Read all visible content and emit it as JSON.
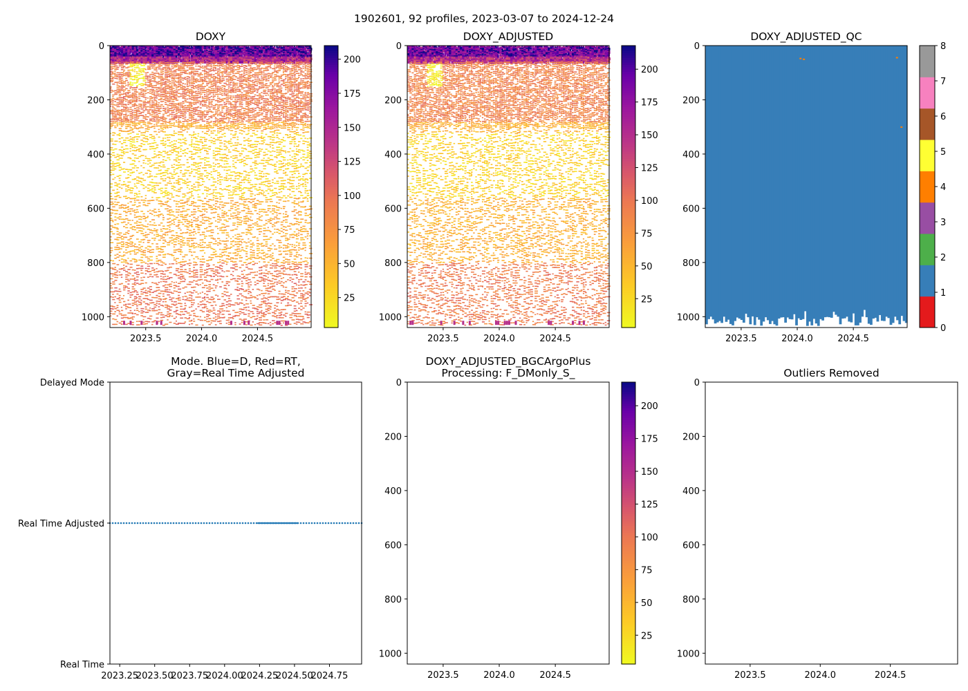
{
  "suptitle": "1902601, 92 profiles, 2023-03-07 to 2024-12-24",
  "chart_data": [
    {
      "id": "doxy",
      "type": "heatmap",
      "title": "DOXY",
      "x_ticks": [
        "2023.5",
        "2024.0",
        "2024.5"
      ],
      "x_tick_values": [
        2023.5,
        2024.0,
        2024.5
      ],
      "xlim": [
        2023.18,
        2024.98
      ],
      "y_ticks": [
        "0",
        "200",
        "400",
        "600",
        "800",
        "1000"
      ],
      "y_tick_values": [
        0,
        200,
        400,
        600,
        800,
        1000
      ],
      "ylim": [
        1040,
        0
      ],
      "ylabel": "",
      "xlabel": "",
      "colormap": "plasma_r",
      "colorbar_range": [
        3,
        210
      ],
      "colorbar_ticks": [
        "25",
        "50",
        "75",
        "100",
        "125",
        "150",
        "175",
        "200"
      ],
      "colorbar_tick_values": [
        25,
        50,
        75,
        100,
        125,
        150,
        175,
        200
      ],
      "profiles": 92,
      "depth_zones": [
        {
          "from": 0,
          "to": 40,
          "typical_value": 190
        },
        {
          "from": 40,
          "to": 60,
          "typical_value": 150
        },
        {
          "from": 60,
          "to": 280,
          "typical_value": 90
        },
        {
          "from": 280,
          "to": 320,
          "typical_value": 55
        },
        {
          "from": 320,
          "to": 560,
          "typical_value": 30
        },
        {
          "from": 560,
          "to": 800,
          "typical_value": 55
        },
        {
          "from": 800,
          "to": 1030,
          "typical_value": 95
        }
      ]
    },
    {
      "id": "doxy_adjusted",
      "type": "heatmap",
      "title": "DOXY_ADJUSTED",
      "x_ticks": [
        "2023.5",
        "2024.0",
        "2024.5"
      ],
      "x_tick_values": [
        2023.5,
        2024.0,
        2024.5
      ],
      "xlim": [
        2023.18,
        2024.98
      ],
      "y_ticks": [
        "0",
        "200",
        "400",
        "600",
        "800",
        "1000"
      ],
      "y_tick_values": [
        0,
        200,
        400,
        600,
        800,
        1000
      ],
      "ylim": [
        1040,
        0
      ],
      "ylabel": "",
      "xlabel": "",
      "colormap": "plasma_r",
      "colorbar_range": [
        3,
        218
      ],
      "colorbar_ticks": [
        "25",
        "50",
        "75",
        "100",
        "125",
        "150",
        "175",
        "200"
      ],
      "colorbar_tick_values": [
        25,
        50,
        75,
        100,
        125,
        150,
        175,
        200
      ],
      "profiles": 92
    },
    {
      "id": "doxy_adjusted_qc",
      "type": "heatmap",
      "title": "DOXY_ADJUSTED_QC",
      "x_ticks": [
        "2023.5",
        "2024.0",
        "2024.5"
      ],
      "x_tick_values": [
        2023.5,
        2024.0,
        2024.5
      ],
      "xlim": [
        2023.18,
        2024.98
      ],
      "y_ticks": [
        "0",
        "200",
        "400",
        "600",
        "800",
        "1000"
      ],
      "y_tick_values": [
        0,
        200,
        400,
        600,
        800,
        1000
      ],
      "ylim": [
        1040,
        0
      ],
      "dominant_value": 1,
      "colorbar_range": [
        0,
        8
      ],
      "colorbar_ticks": [
        "0",
        "1",
        "2",
        "3",
        "4",
        "5",
        "6",
        "7",
        "8"
      ],
      "colorbar_tick_values": [
        0,
        1,
        2,
        3,
        4,
        5,
        6,
        7,
        8
      ],
      "qc_colors": [
        "#e41a1c",
        "#377eb8",
        "#4daf4a",
        "#984ea3",
        "#ff7f00",
        "#ffff33",
        "#a65628",
        "#f781bf",
        "#999999"
      ]
    },
    {
      "id": "mode",
      "type": "scatter",
      "title": "Mode. Blue=D, Red=RT,\nGray=Real Time Adjusted",
      "x_ticks": [
        "2023.25",
        "2023.50",
        "2023.75",
        "2024.00",
        "2024.25",
        "2024.50",
        "2024.75"
      ],
      "x_tick_values": [
        2023.25,
        2023.5,
        2023.75,
        2024.0,
        2024.25,
        2024.5,
        2024.75
      ],
      "xlim": [
        2023.18,
        2024.98
      ],
      "y_ticks": [
        "Real Time",
        "Real Time Adjusted",
        "Delayed Mode"
      ],
      "y_tick_values": [
        0,
        1,
        2
      ],
      "ylim": [
        0,
        2
      ],
      "series": [
        {
          "name": "Real Time Adjusted",
          "y": 1,
          "x_start": 2023.18,
          "x_end": 2024.98,
          "count": 92,
          "color": "#1f77b4"
        }
      ]
    },
    {
      "id": "bgcargoplus",
      "type": "heatmap",
      "title": "DOXY_ADJUSTED_BGCArgoPlus\nProcessing: F_DMonly_S_",
      "x_ticks": [
        "2023.5",
        "2024.0",
        "2024.5"
      ],
      "x_tick_values": [
        2023.5,
        2024.0,
        2024.5
      ],
      "xlim": [
        2023.18,
        2024.98
      ],
      "y_ticks": [
        "0",
        "200",
        "400",
        "600",
        "800",
        "1000"
      ],
      "y_tick_values": [
        0,
        200,
        400,
        600,
        800,
        1000
      ],
      "ylim": [
        1040,
        0
      ],
      "colormap": "plasma_r",
      "colorbar_range": [
        3,
        218
      ],
      "colorbar_ticks": [
        "25",
        "50",
        "75",
        "100",
        "125",
        "150",
        "175",
        "200"
      ],
      "colorbar_tick_values": [
        25,
        50,
        75,
        100,
        125,
        150,
        175,
        200
      ],
      "empty": true
    },
    {
      "id": "outliers",
      "type": "scatter",
      "title": "Outliers Removed",
      "x_ticks": [
        "2023.5",
        "2024.0",
        "2024.5"
      ],
      "x_tick_values": [
        2023.5,
        2024.0,
        2024.5
      ],
      "xlim": [
        2023.18,
        2024.98
      ],
      "y_ticks": [
        "0",
        "200",
        "400",
        "600",
        "800",
        "1000"
      ],
      "y_tick_values": [
        0,
        200,
        400,
        600,
        800,
        1000
      ],
      "ylim": [
        1040,
        0
      ],
      "empty": true
    }
  ]
}
